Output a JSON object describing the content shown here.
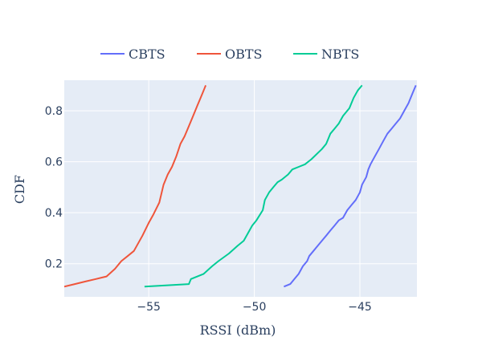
{
  "chart_data": {
    "type": "line",
    "title": "",
    "xlabel": "RSSI (dBm)",
    "ylabel": "CDF",
    "xlim": [
      -59,
      -42.3
    ],
    "ylim": [
      0.07,
      0.92
    ],
    "xticks": [
      -55,
      -50,
      -45
    ],
    "xtick_labels": [
      "−55",
      "−50",
      "−45"
    ],
    "yticks": [
      0.2,
      0.4,
      0.6,
      0.8
    ],
    "ytick_labels": [
      "0.2",
      "0.4",
      "0.6",
      "0.8"
    ],
    "grid": true,
    "legend_position": "top-center",
    "colors": {
      "plot_bg": "#e5ecf6",
      "grid": "#ffffff",
      "text": "#2a3f5f"
    },
    "series": [
      {
        "name": "CBTS",
        "color": "#636efa",
        "x": [
          -48.6,
          -48.3,
          -48.1,
          -47.9,
          -47.7,
          -47.5,
          -47.4,
          -47.2,
          -47.0,
          -46.8,
          -46.6,
          -46.4,
          -46.2,
          -46.0,
          -45.8,
          -45.6,
          -45.4,
          -45.2,
          -45.0,
          -44.9,
          -44.7,
          -44.6,
          -44.5,
          -44.3,
          -44.1,
          -43.9,
          -43.7,
          -43.5,
          -43.3,
          -43.1,
          -42.9,
          -42.7,
          -42.5,
          -42.35
        ],
        "y": [
          0.11,
          0.12,
          0.14,
          0.16,
          0.19,
          0.21,
          0.23,
          0.25,
          0.27,
          0.29,
          0.31,
          0.33,
          0.35,
          0.37,
          0.38,
          0.41,
          0.43,
          0.45,
          0.48,
          0.51,
          0.54,
          0.57,
          0.59,
          0.62,
          0.65,
          0.68,
          0.71,
          0.73,
          0.75,
          0.77,
          0.8,
          0.83,
          0.87,
          0.9
        ]
      },
      {
        "name": "OBTS",
        "color": "#ef553b",
        "x": [
          -59.0,
          -58.5,
          -58.0,
          -57.5,
          -57.0,
          -56.6,
          -56.3,
          -56.0,
          -55.7,
          -55.5,
          -55.3,
          -55.0,
          -54.8,
          -54.5,
          -54.3,
          -54.1,
          -53.9,
          -53.7,
          -53.5,
          -53.3,
          -53.1,
          -52.9,
          -52.7,
          -52.5,
          -52.3
        ],
        "y": [
          0.11,
          0.12,
          0.13,
          0.14,
          0.15,
          0.18,
          0.21,
          0.23,
          0.25,
          0.28,
          0.31,
          0.36,
          0.39,
          0.44,
          0.51,
          0.55,
          0.58,
          0.62,
          0.67,
          0.7,
          0.74,
          0.78,
          0.82,
          0.86,
          0.9
        ]
      },
      {
        "name": "NBTS",
        "color": "#00cc96",
        "x": [
          -55.2,
          -53.1,
          -53.0,
          -52.4,
          -52.0,
          -51.7,
          -51.2,
          -50.8,
          -50.5,
          -50.3,
          -50.1,
          -49.9,
          -49.6,
          -49.5,
          -49.3,
          -49.1,
          -48.9,
          -48.7,
          -48.4,
          -48.2,
          -47.9,
          -47.6,
          -47.3,
          -46.8,
          -46.6,
          -46.5,
          -46.4,
          -46.2,
          -46.0,
          -45.8,
          -45.5,
          -45.3,
          -45.1,
          -44.9
        ],
        "y": [
          0.11,
          0.12,
          0.14,
          0.16,
          0.19,
          0.21,
          0.24,
          0.27,
          0.29,
          0.32,
          0.35,
          0.37,
          0.41,
          0.45,
          0.48,
          0.5,
          0.52,
          0.53,
          0.55,
          0.57,
          0.58,
          0.59,
          0.61,
          0.65,
          0.67,
          0.69,
          0.71,
          0.73,
          0.75,
          0.78,
          0.81,
          0.85,
          0.88,
          0.9
        ]
      }
    ]
  }
}
